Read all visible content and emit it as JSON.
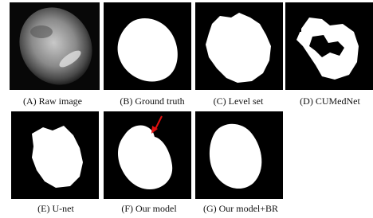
{
  "panels": [
    {
      "caption": "(A) Raw image"
    },
    {
      "caption": "(B) Ground truth"
    },
    {
      "caption": "(C) Level set"
    },
    {
      "caption": "(D) CUMedNet"
    },
    {
      "caption": "(E) U-net"
    },
    {
      "caption": "(F) Our model"
    },
    {
      "caption": "(G) Our model+BR"
    }
  ]
}
